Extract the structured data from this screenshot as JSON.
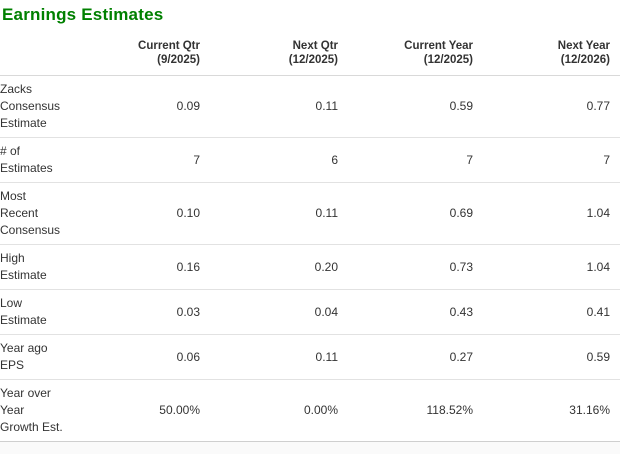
{
  "page": {
    "title": "Earnings Estimates"
  },
  "colors": {
    "title_green": "#008000",
    "body_text": "#333333",
    "row_divider": "#e2e2e2",
    "header_divider": "#d9d9d9",
    "footer_strip": "#fafafa"
  },
  "chart_data": {
    "type": "table",
    "title": "Earnings Estimates",
    "legend_position": "none",
    "columns": [
      {
        "label": "Current Qtr",
        "period": "(9/2025)"
      },
      {
        "label": "Next Qtr",
        "period": "(12/2025)"
      },
      {
        "label": "Current Year",
        "period": "(12/2025)"
      },
      {
        "label": "Next Year",
        "period": "(12/2026)"
      }
    ],
    "rows": [
      {
        "label": "Zacks Consensus Estimate",
        "values": [
          "0.09",
          "0.11",
          "0.59",
          "0.77"
        ]
      },
      {
        "label": "# of Estimates",
        "values": [
          "7",
          "6",
          "7",
          "7"
        ]
      },
      {
        "label": "Most Recent Consensus",
        "values": [
          "0.10",
          "0.11",
          "0.69",
          "1.04"
        ]
      },
      {
        "label": "High Estimate",
        "values": [
          "0.16",
          "0.20",
          "0.73",
          "1.04"
        ]
      },
      {
        "label": "Low Estimate",
        "values": [
          "0.03",
          "0.04",
          "0.43",
          "0.41"
        ]
      },
      {
        "label": "Year ago EPS",
        "values": [
          "0.06",
          "0.11",
          "0.27",
          "0.59"
        ]
      },
      {
        "label": "Year over Year Growth Est.",
        "values": [
          "50.00%",
          "0.00%",
          "118.52%",
          "31.16%"
        ]
      }
    ]
  }
}
